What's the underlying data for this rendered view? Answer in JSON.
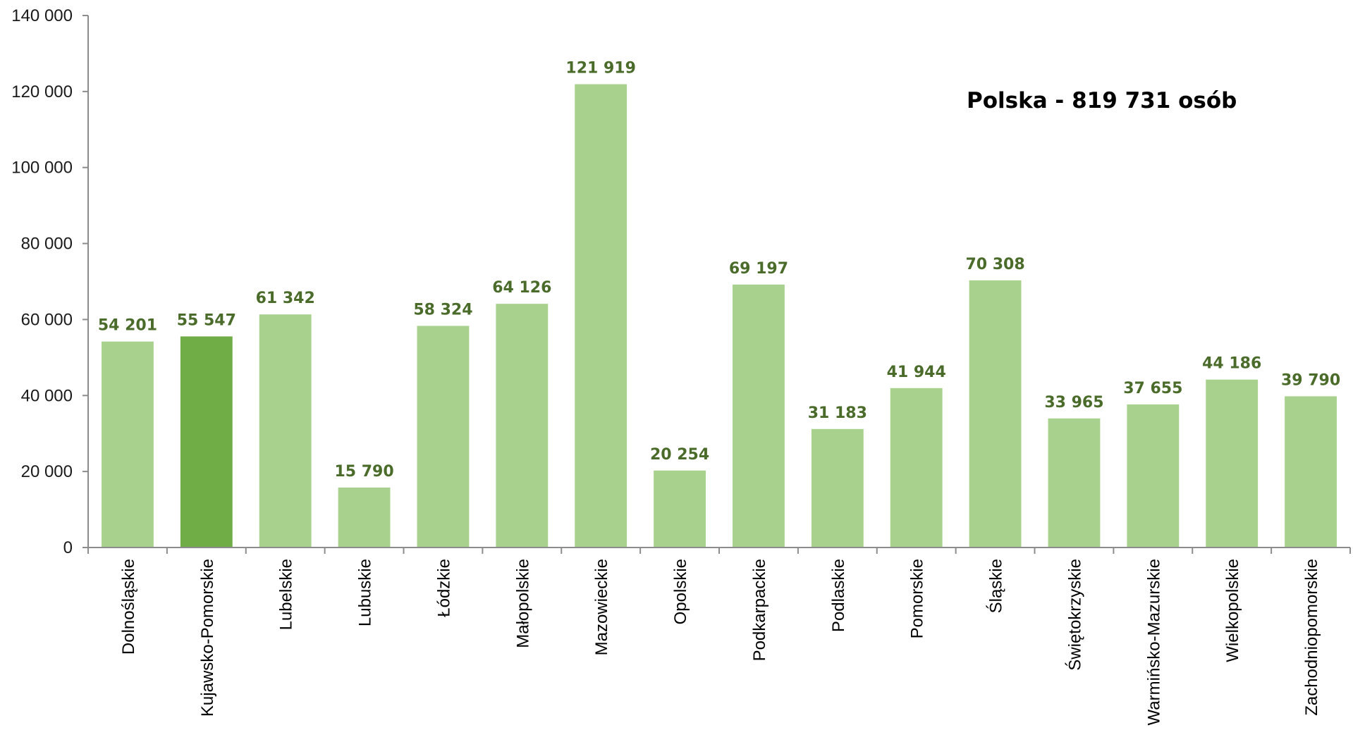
{
  "chart_data": {
    "type": "bar",
    "categories": [
      "Dolnośląskie",
      "Kujawsko-Pomorskie",
      "Lubelskie",
      "Lubuskie",
      "Łódzkie",
      "Małopolskie",
      "Mazowieckie",
      "Opolskie",
      "Podkarpackie",
      "Podlaskie",
      "Pomorskie",
      "Śląskie",
      "Świętokrzyskie",
      "Warmińsko-Mazurskie",
      "Wielkopolskie",
      "Zachodniopomorskie"
    ],
    "values": [
      54201,
      55547,
      61342,
      15790,
      58324,
      64126,
      121919,
      20254,
      69197,
      31183,
      41944,
      70308,
      33965,
      37655,
      44186,
      39790
    ],
    "data_labels": [
      "54 201",
      "55 547",
      "61 342",
      "15 790",
      "58 324",
      "64 126",
      "121 919",
      "20 254",
      "69 197",
      "31 183",
      "41 944",
      "70 308",
      "33 965",
      "37 655",
      "44 186",
      "39 790"
    ],
    "highlighted_category": "Kujawsko-Pomorskie",
    "ylim": [
      0,
      140000
    ],
    "yticks": [
      0,
      20000,
      40000,
      60000,
      80000,
      100000,
      120000,
      140000
    ],
    "ytick_labels": [
      "0",
      "20 000",
      "40 000",
      "60 000",
      "80 000",
      "100 000",
      "120 000",
      "140 000"
    ],
    "annotation": "Polska - 819 731 osób",
    "title": "",
    "xlabel": "",
    "ylabel": "",
    "grid": false,
    "legend": "none",
    "colors": {
      "bar": "#a9d18e",
      "bar_highlight": "#70ad47",
      "data_label": "#4a6b2a",
      "axis": "#8c8c8c"
    }
  }
}
